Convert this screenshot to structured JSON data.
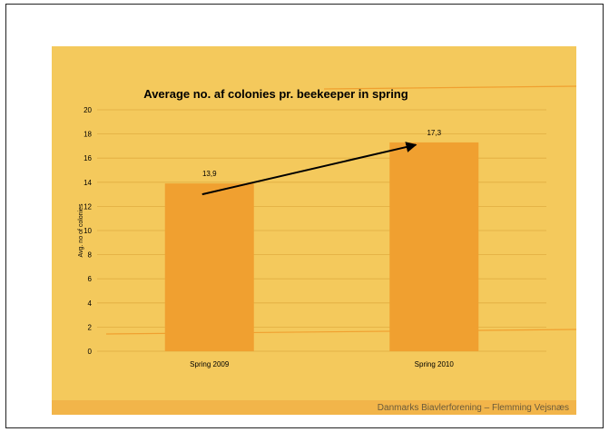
{
  "footer": {
    "text": "Danmarks Biavlerforening – Flemming Vejsnæs"
  },
  "colors": {
    "background": "#f4c95c",
    "bar": "#f0a030",
    "grid": "#e0ad40",
    "accent_line": "#f0a030",
    "arrow": "#000000"
  },
  "chart_data": {
    "type": "bar",
    "title": "Average no. af colonies pr. beekeeper in spring",
    "xlabel": "",
    "ylabel": "Avg. no of colonies",
    "categories": [
      "Spring 2009",
      "Spring 2010"
    ],
    "values": [
      13.9,
      17.3
    ],
    "data_labels": [
      "13,9",
      "17,3"
    ],
    "ylim": [
      0,
      20
    ],
    "yticks": [
      0,
      2,
      4,
      6,
      8,
      10,
      12,
      14,
      16,
      18,
      20
    ],
    "grid": true,
    "legend": "none",
    "annotation": "arrow from Spring 2009 bar to Spring 2010 bar"
  }
}
